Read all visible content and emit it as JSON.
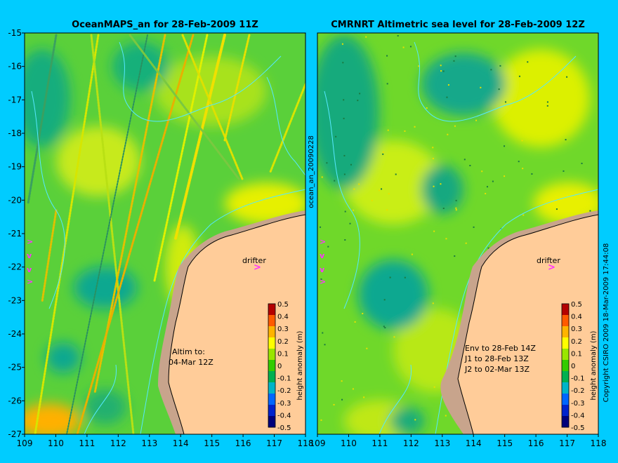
{
  "colors": {
    "background": "#00ccff",
    "land": "#ffcc99",
    "shelf": "#c8a48c",
    "contour": "#55e8ff",
    "drifter": "#ff33ff"
  },
  "left_panel": {
    "title": "OceanMAPS_an for 28-Feb-2009 11Z",
    "altim_label_1": "Altim to:",
    "altim_label_2": "04-Mar 12Z",
    "drifter_label": "drifter",
    "x_ticks": [
      "109",
      "110",
      "111",
      "112",
      "113",
      "114",
      "115",
      "116",
      "117",
      "118"
    ],
    "y_ticks": [
      "-15",
      "-16",
      "-17",
      "-18",
      "-19",
      "-20",
      "-21",
      "-22",
      "-23",
      "-24",
      "-25",
      "-26",
      "-27"
    ],
    "side_label": "ocean_an_20090228"
  },
  "right_panel": {
    "title": "CMRNRT Altimetric sea level  for 28-Feb-2009 12Z",
    "drifter_label": "drifter",
    "info_1": "Env to 28-Feb 14Z",
    "info_2": "J1 to 28-Feb 13Z",
    "info_3": "J2 to 02-Mar 13Z",
    "x_ticks": [
      "109",
      "110",
      "111",
      "112",
      "113",
      "114",
      "115",
      "116",
      "117",
      "118"
    ],
    "side_label": "Copyright CSIRO 2009   18-Mar-2009 17:44:08"
  },
  "colorbar": {
    "label": "height anomaly (m)",
    "ticks": [
      "0.5",
      "0.4",
      "0.3",
      "0.2",
      "0.1",
      "0",
      "-0.1",
      "-0.2",
      "-0.3",
      "-0.4",
      "-0.5"
    ],
    "colors": [
      "#00007a",
      "#0022cc",
      "#0066ff",
      "#00b4c8",
      "#00b050",
      "#33cc00",
      "#9ae600",
      "#ffff00",
      "#ffb400",
      "#ff5a00",
      "#b40000"
    ]
  },
  "chart_data": {
    "type": "heatmap",
    "variable": "height anomaly",
    "unit": "m",
    "x": [
      109,
      110,
      111,
      112,
      113,
      114,
      115,
      116,
      117,
      118
    ],
    "y": [
      -15,
      -16,
      -17,
      -18,
      -19,
      -20,
      -21,
      -22,
      -23,
      -24,
      -25,
      -26,
      -27
    ],
    "color_range": [
      -0.5,
      0.5
    ]
  }
}
